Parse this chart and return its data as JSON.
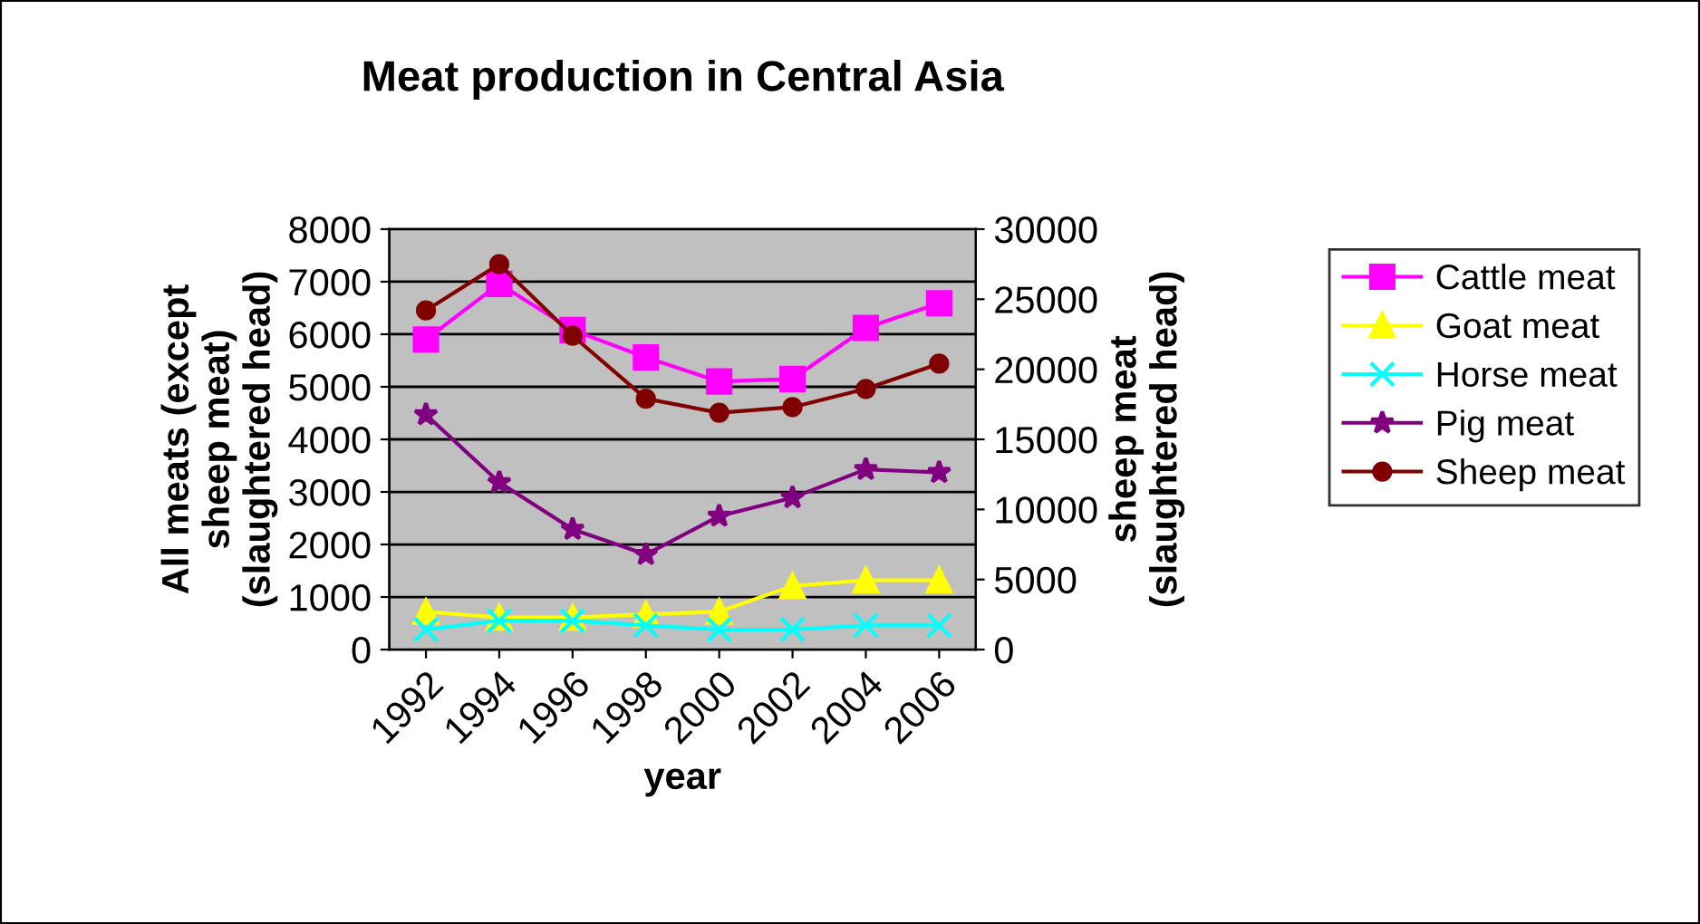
{
  "chart_data": {
    "type": "line",
    "title": "Meat production in Central Asia",
    "xlabel": "year",
    "ylabel": "All meats (except\nsheep meat)\n(slaughtered head)",
    "y2label": "sheep meat\n(slaughtered head)",
    "categories": [
      "1992",
      "1994",
      "1996",
      "1998",
      "2000",
      "2002",
      "2004",
      "2006"
    ],
    "series": [
      {
        "name": "Cattle meat",
        "color": "#ff00ff",
        "marker": "square",
        "values": [
          5900,
          6960,
          6080,
          5560,
          5100,
          5150,
          6120,
          6590
        ]
      },
      {
        "name": "Goat meat",
        "color": "#ffff00",
        "marker": "triangle",
        "values": [
          720,
          610,
          610,
          670,
          720,
          1210,
          1320,
          1320
        ]
      },
      {
        "name": "Horse meat",
        "color": "#00ffff",
        "marker": "cross",
        "values": [
          380,
          550,
          550,
          460,
          380,
          380,
          460,
          460
        ]
      },
      {
        "name": "Pig meat",
        "color": "#800080",
        "marker": "star",
        "values": [
          4470,
          3180,
          2290,
          1810,
          2540,
          2890,
          3430,
          3370
        ]
      },
      {
        "name": "Sheep meat",
        "color": "#800000",
        "marker": "circle",
        "axis": "y2",
        "values": [
          24200,
          27500,
          22400,
          17900,
          16900,
          17300,
          18600,
          20400
        ]
      }
    ],
    "ylim": [
      0,
      8000
    ],
    "yticks": [
      0,
      1000,
      2000,
      3000,
      4000,
      5000,
      6000,
      7000,
      8000
    ],
    "y2lim": [
      0,
      30000
    ],
    "y2ticks": [
      0,
      5000,
      10000,
      15000,
      20000,
      25000,
      30000
    ],
    "grid": "y",
    "legend": "right",
    "line_style": "solid"
  }
}
